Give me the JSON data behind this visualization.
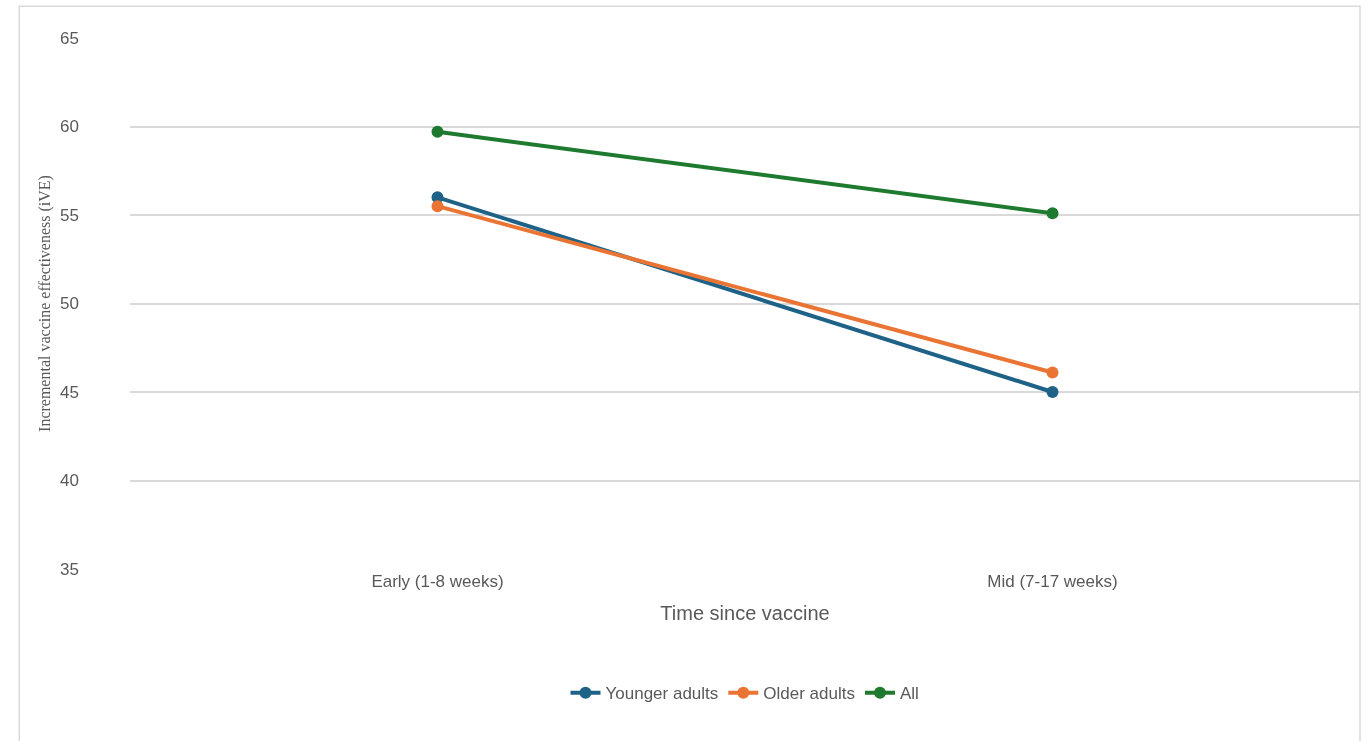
{
  "chart_data": {
    "type": "line",
    "xlabel": "Time since vaccine",
    "ylabel": "Incremental vaccine effectiveness (iVE)",
    "categories": [
      "Early (1-8 weeks)",
      "Mid (7-17 weeks)"
    ],
    "series": [
      {
        "name": "Younger adults",
        "color": "#1f6288",
        "values": [
          56.0,
          45.0
        ]
      },
      {
        "name": "Older adults",
        "color": "#ea7433",
        "values": [
          55.5,
          46.1
        ]
      },
      {
        "name": "All",
        "color": "#1e7a2e",
        "values": [
          59.7,
          55.1
        ]
      }
    ],
    "ylim": [
      35,
      65
    ],
    "yticks": [
      35,
      40,
      45,
      50,
      55,
      60,
      65
    ],
    "grid": "y",
    "legend": "bottom",
    "marker": "circle",
    "line_style": "solid"
  }
}
